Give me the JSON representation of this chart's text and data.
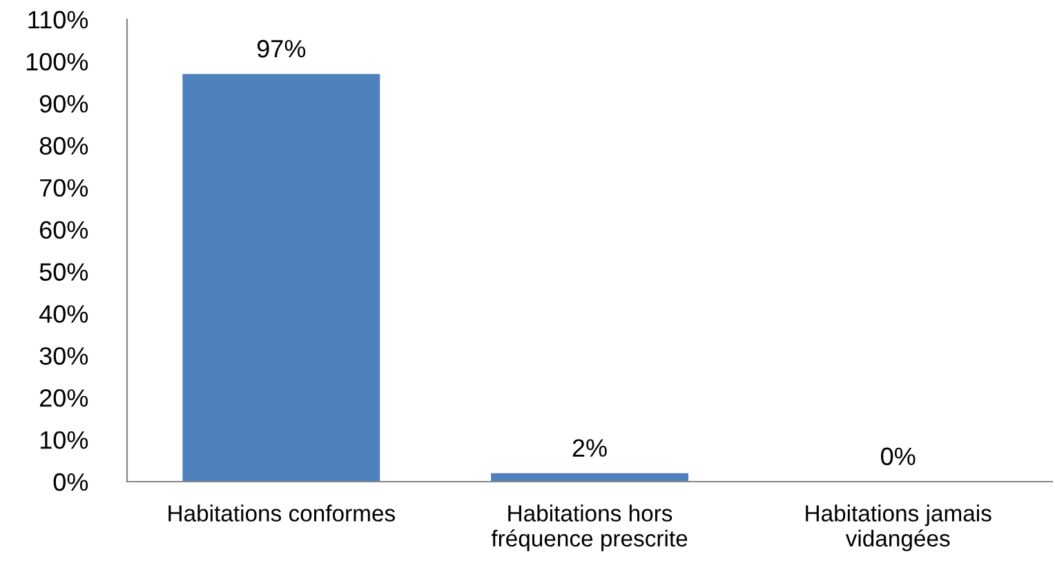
{
  "chart_data": {
    "type": "bar",
    "categories": [
      "Habitations conformes",
      "Habitations hors\nfréquence prescrite",
      "Habitations jamais\nvidangées"
    ],
    "values": [
      97,
      2,
      0
    ],
    "color": "#4f81bd",
    "value_labels": [
      "97%",
      "2%",
      "0%"
    ],
    "ylim": [
      0,
      110
    ],
    "yticks": [
      {
        "value": 0,
        "label": "0%"
      },
      {
        "value": 10,
        "label": "10%"
      },
      {
        "value": 20,
        "label": "20%"
      },
      {
        "value": 30,
        "label": "30%"
      },
      {
        "value": 40,
        "label": "40%"
      },
      {
        "value": 50,
        "label": "50%"
      },
      {
        "value": 60,
        "label": "60%"
      },
      {
        "value": 70,
        "label": "70%"
      },
      {
        "value": 80,
        "label": "80%"
      },
      {
        "value": 90,
        "label": "90%"
      },
      {
        "value": 100,
        "label": "100%"
      },
      {
        "value": 110,
        "label": "110%"
      }
    ],
    "grid": false
  }
}
